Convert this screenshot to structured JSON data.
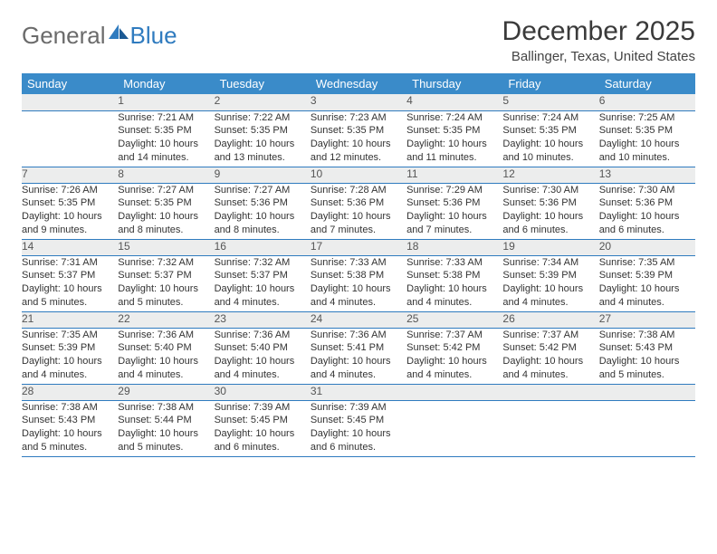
{
  "brand": {
    "part1": "General",
    "part2": "Blue"
  },
  "title": "December 2025",
  "location": "Ballinger, Texas, United States",
  "colors": {
    "header_bg": "#3a8bc9",
    "header_text": "#ffffff",
    "daynum_bg": "#eceded",
    "rule": "#2f7bbf",
    "logo_gray": "#6b6b6b",
    "logo_blue": "#2f7bbf",
    "title_color": "#3a3a3a"
  },
  "day_headers": [
    "Sunday",
    "Monday",
    "Tuesday",
    "Wednesday",
    "Thursday",
    "Friday",
    "Saturday"
  ],
  "weeks": [
    {
      "nums": [
        "",
        "1",
        "2",
        "3",
        "4",
        "5",
        "6"
      ],
      "details": [
        "",
        "Sunrise: 7:21 AM\nSunset: 5:35 PM\nDaylight: 10 hours and 14 minutes.",
        "Sunrise: 7:22 AM\nSunset: 5:35 PM\nDaylight: 10 hours and 13 minutes.",
        "Sunrise: 7:23 AM\nSunset: 5:35 PM\nDaylight: 10 hours and 12 minutes.",
        "Sunrise: 7:24 AM\nSunset: 5:35 PM\nDaylight: 10 hours and 11 minutes.",
        "Sunrise: 7:24 AM\nSunset: 5:35 PM\nDaylight: 10 hours and 10 minutes.",
        "Sunrise: 7:25 AM\nSunset: 5:35 PM\nDaylight: 10 hours and 10 minutes."
      ]
    },
    {
      "nums": [
        "7",
        "8",
        "9",
        "10",
        "11",
        "12",
        "13"
      ],
      "details": [
        "Sunrise: 7:26 AM\nSunset: 5:35 PM\nDaylight: 10 hours and 9 minutes.",
        "Sunrise: 7:27 AM\nSunset: 5:35 PM\nDaylight: 10 hours and 8 minutes.",
        "Sunrise: 7:27 AM\nSunset: 5:36 PM\nDaylight: 10 hours and 8 minutes.",
        "Sunrise: 7:28 AM\nSunset: 5:36 PM\nDaylight: 10 hours and 7 minutes.",
        "Sunrise: 7:29 AM\nSunset: 5:36 PM\nDaylight: 10 hours and 7 minutes.",
        "Sunrise: 7:30 AM\nSunset: 5:36 PM\nDaylight: 10 hours and 6 minutes.",
        "Sunrise: 7:30 AM\nSunset: 5:36 PM\nDaylight: 10 hours and 6 minutes."
      ]
    },
    {
      "nums": [
        "14",
        "15",
        "16",
        "17",
        "18",
        "19",
        "20"
      ],
      "details": [
        "Sunrise: 7:31 AM\nSunset: 5:37 PM\nDaylight: 10 hours and 5 minutes.",
        "Sunrise: 7:32 AM\nSunset: 5:37 PM\nDaylight: 10 hours and 5 minutes.",
        "Sunrise: 7:32 AM\nSunset: 5:37 PM\nDaylight: 10 hours and 4 minutes.",
        "Sunrise: 7:33 AM\nSunset: 5:38 PM\nDaylight: 10 hours and 4 minutes.",
        "Sunrise: 7:33 AM\nSunset: 5:38 PM\nDaylight: 10 hours and 4 minutes.",
        "Sunrise: 7:34 AM\nSunset: 5:39 PM\nDaylight: 10 hours and 4 minutes.",
        "Sunrise: 7:35 AM\nSunset: 5:39 PM\nDaylight: 10 hours and 4 minutes."
      ]
    },
    {
      "nums": [
        "21",
        "22",
        "23",
        "24",
        "25",
        "26",
        "27"
      ],
      "details": [
        "Sunrise: 7:35 AM\nSunset: 5:39 PM\nDaylight: 10 hours and 4 minutes.",
        "Sunrise: 7:36 AM\nSunset: 5:40 PM\nDaylight: 10 hours and 4 minutes.",
        "Sunrise: 7:36 AM\nSunset: 5:40 PM\nDaylight: 10 hours and 4 minutes.",
        "Sunrise: 7:36 AM\nSunset: 5:41 PM\nDaylight: 10 hours and 4 minutes.",
        "Sunrise: 7:37 AM\nSunset: 5:42 PM\nDaylight: 10 hours and 4 minutes.",
        "Sunrise: 7:37 AM\nSunset: 5:42 PM\nDaylight: 10 hours and 4 minutes.",
        "Sunrise: 7:38 AM\nSunset: 5:43 PM\nDaylight: 10 hours and 5 minutes."
      ]
    },
    {
      "nums": [
        "28",
        "29",
        "30",
        "31",
        "",
        "",
        ""
      ],
      "details": [
        "Sunrise: 7:38 AM\nSunset: 5:43 PM\nDaylight: 10 hours and 5 minutes.",
        "Sunrise: 7:38 AM\nSunset: 5:44 PM\nDaylight: 10 hours and 5 minutes.",
        "Sunrise: 7:39 AM\nSunset: 5:45 PM\nDaylight: 10 hours and 6 minutes.",
        "Sunrise: 7:39 AM\nSunset: 5:45 PM\nDaylight: 10 hours and 6 minutes.",
        "",
        "",
        ""
      ]
    }
  ]
}
